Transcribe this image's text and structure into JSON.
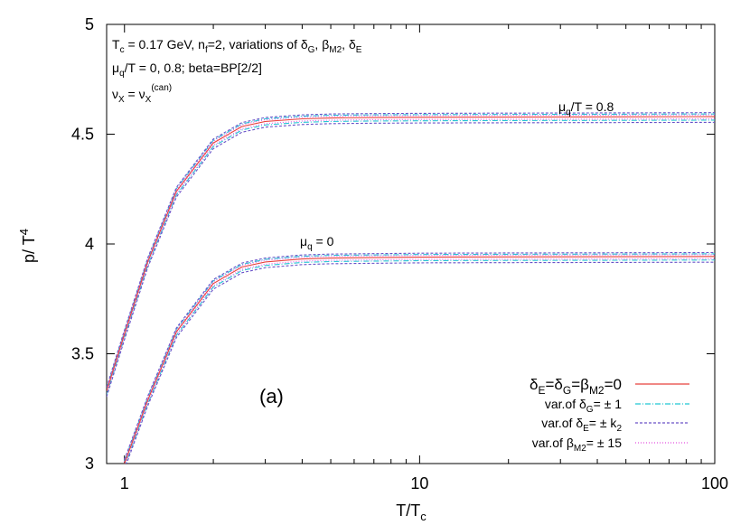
{
  "chart_data": {
    "type": "line",
    "xlabel": "T/T",
    "xlabel_sub": "c",
    "ylabel": "p/ T",
    "ylabel_sup": "4",
    "xscale": "log",
    "xlim": [
      0.87,
      100
    ],
    "ylim": [
      3,
      5
    ],
    "xticks": [
      1,
      10,
      100
    ],
    "xtick_labels": [
      "1",
      "10",
      "100"
    ],
    "yticks": [
      3,
      3.5,
      4,
      4.5,
      5
    ],
    "ytick_labels": [
      "3",
      "3.5",
      "4",
      "4.5",
      "5"
    ],
    "grid": false,
    "legend_position": "bottom-right",
    "panel_label": "(a)",
    "info_lines": [
      "T_c = 0.17 GeV, n_f=2, variations of δ_G, β_M2, δ_E",
      "μ_q/T = 0, 0.8; beta=BP[2/2]",
      "ν_X = ν_X^(can)"
    ],
    "info": {
      "l1_a": "T",
      "l1_a_sub": "c",
      "l1_b": " = 0.17 GeV, n",
      "l1_b_sub": "f",
      "l1_c": "=2, variations of δ",
      "l1_c_sub": "G",
      "l1_d": ", β",
      "l1_d_sub": "M2",
      "l1_e": ", δ",
      "l1_e_sub": "E",
      "l2_a": "μ",
      "l2_a_sub": "q",
      "l2_b": "/T = 0, 0.8; beta=BP[2/2]",
      "l3_a": "ν",
      "l3_a_sub": "X",
      "l3_b": " = ν",
      "l3_b_sub": "X",
      "l3_b_sup": "(can)"
    },
    "curve_labels": {
      "upper_a": "μ",
      "upper_a_sub": "q",
      "upper_b": "/T = 0.8",
      "lower_a": "μ",
      "lower_a_sub": "q",
      "lower_b": " = 0"
    },
    "legend": [
      {
        "name": "δ_E=δ_G=β_M2=0",
        "color": "#e8413c",
        "dash": "solid"
      },
      {
        "name": "var.of δ_G= ± 1",
        "color": "#22c7d4",
        "dash": "dashdot"
      },
      {
        "name": "var.of δ_E= ± k_2",
        "color": "#6a52c8",
        "dash": "dashed"
      },
      {
        "name": "var.of β_M2= ± 15",
        "color": "#e455e0",
        "dash": "dotted"
      }
    ],
    "legend_parts": {
      "l1": {
        "a": "δ",
        "a_sub": "E",
        "b": "=δ",
        "b_sub": "G",
        "c": "=β",
        "c_sub": "M2",
        "d": "=0"
      },
      "l2": {
        "a": "var.of  δ",
        "a_sub": "G",
        "b": "= ± 1"
      },
      "l3": {
        "a": "var.of  δ",
        "a_sub": "E",
        "b": "= ± k",
        "b_sub": "2"
      },
      "l4": {
        "a": "var.of  β",
        "a_sub": "M2",
        "b": "= ± 15"
      }
    },
    "series": [
      {
        "name": "μ_q/T = 0.8, δ_E=δ_G=β_M2=0",
        "x": [
          0.87,
          1.0,
          1.2,
          1.5,
          2.0,
          2.5,
          3.0,
          4.0,
          5.0,
          7.0,
          10,
          20,
          50,
          100
        ],
        "y": [
          3.33,
          3.59,
          3.92,
          4.24,
          4.46,
          4.535,
          4.558,
          4.57,
          4.574,
          4.576,
          4.577,
          4.578,
          4.579,
          4.58
        ]
      },
      {
        "name": "μ_q/T = 0, δ_E=δ_G=β_M2=0",
        "x": [
          1.0,
          1.2,
          1.5,
          2.0,
          2.5,
          3.0,
          4.0,
          5.0,
          7.0,
          10,
          20,
          50,
          100
        ],
        "y": [
          3.0,
          3.29,
          3.6,
          3.82,
          3.895,
          3.918,
          3.932,
          3.936,
          3.938,
          3.94,
          3.941,
          3.942,
          3.943
        ]
      }
    ],
    "band_offsets": {
      "dashdot": [
        0.012,
        -0.016
      ],
      "dashed": [
        0.018,
        -0.026
      ],
      "dotted": [
        0.008,
        -0.01
      ]
    }
  }
}
